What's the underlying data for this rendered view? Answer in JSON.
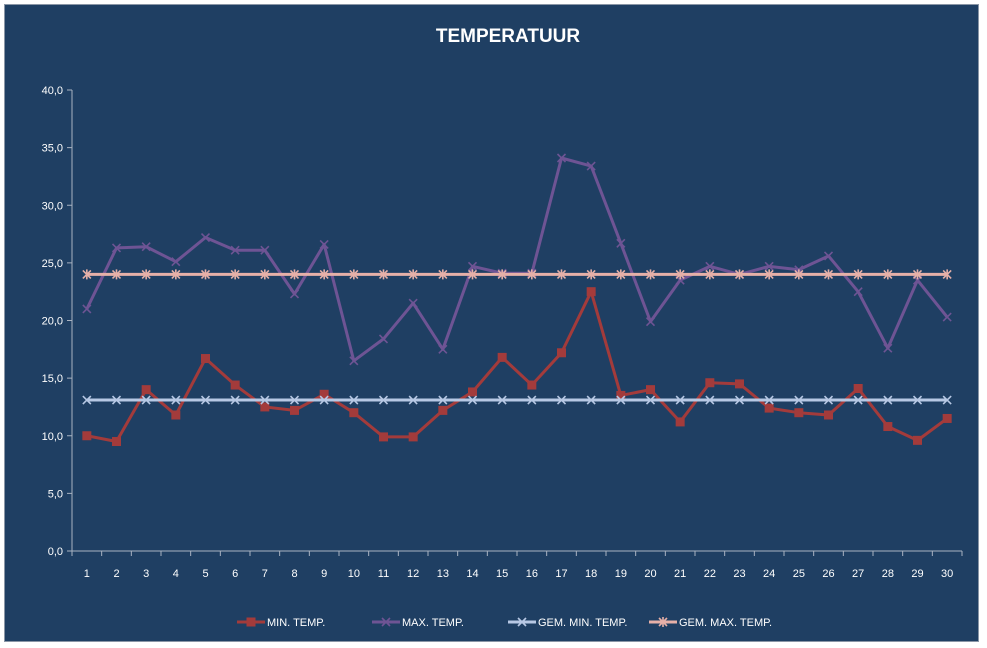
{
  "chart_data": {
    "type": "line",
    "title": "TEMPERATUUR",
    "xlabel": "",
    "ylabel": "",
    "x": [
      1,
      2,
      3,
      4,
      5,
      6,
      7,
      8,
      9,
      10,
      11,
      12,
      13,
      14,
      15,
      16,
      17,
      18,
      19,
      20,
      21,
      22,
      23,
      24,
      25,
      26,
      27,
      28,
      29,
      30
    ],
    "ylim": [
      0,
      40
    ],
    "yticks": [
      "0,0",
      "5,0",
      "10,0",
      "15,0",
      "20,0",
      "25,0",
      "30,0",
      "35,0",
      "40,0"
    ],
    "grid": false,
    "legend_position": "bottom",
    "series": [
      {
        "name": "MIN. TEMP.",
        "color": "#a33b3b",
        "marker": "square",
        "values": [
          10.0,
          9.5,
          14.0,
          11.8,
          16.7,
          14.4,
          12.5,
          12.2,
          13.6,
          12.0,
          9.9,
          9.9,
          12.2,
          13.8,
          16.8,
          14.4,
          17.2,
          22.5,
          13.5,
          14.0,
          11.2,
          14.6,
          14.5,
          12.4,
          12.0,
          11.8,
          14.1,
          10.8,
          9.6,
          11.5
        ]
      },
      {
        "name": "MAX. TEMP.",
        "color": "#6e5494",
        "marker": "x",
        "values": [
          21.0,
          26.3,
          26.4,
          25.1,
          27.2,
          26.1,
          26.1,
          22.3,
          26.6,
          16.5,
          18.4,
          21.5,
          17.5,
          24.7,
          24.1,
          24.1,
          34.1,
          33.4,
          26.7,
          19.9,
          23.5,
          24.7,
          24.0,
          24.7,
          24.4,
          25.6,
          22.5,
          17.6,
          23.5,
          20.3
        ]
      },
      {
        "name": "GEM. MIN. TEMP.",
        "color": "#b7c8e4",
        "marker": "x",
        "values": [
          13.1,
          13.1,
          13.1,
          13.1,
          13.1,
          13.1,
          13.1,
          13.1,
          13.1,
          13.1,
          13.1,
          13.1,
          13.1,
          13.1,
          13.1,
          13.1,
          13.1,
          13.1,
          13.1,
          13.1,
          13.1,
          13.1,
          13.1,
          13.1,
          13.1,
          13.1,
          13.1,
          13.1,
          13.1,
          13.1
        ]
      },
      {
        "name": "GEM. MAX. TEMP.",
        "color": "#e6b0a8",
        "marker": "star",
        "values": [
          24.0,
          24.0,
          24.0,
          24.0,
          24.0,
          24.0,
          24.0,
          24.0,
          24.0,
          24.0,
          24.0,
          24.0,
          24.0,
          24.0,
          24.0,
          24.0,
          24.0,
          24.0,
          24.0,
          24.0,
          24.0,
          24.0,
          24.0,
          24.0,
          24.0,
          24.0,
          24.0,
          24.0,
          24.0,
          24.0
        ]
      }
    ]
  }
}
